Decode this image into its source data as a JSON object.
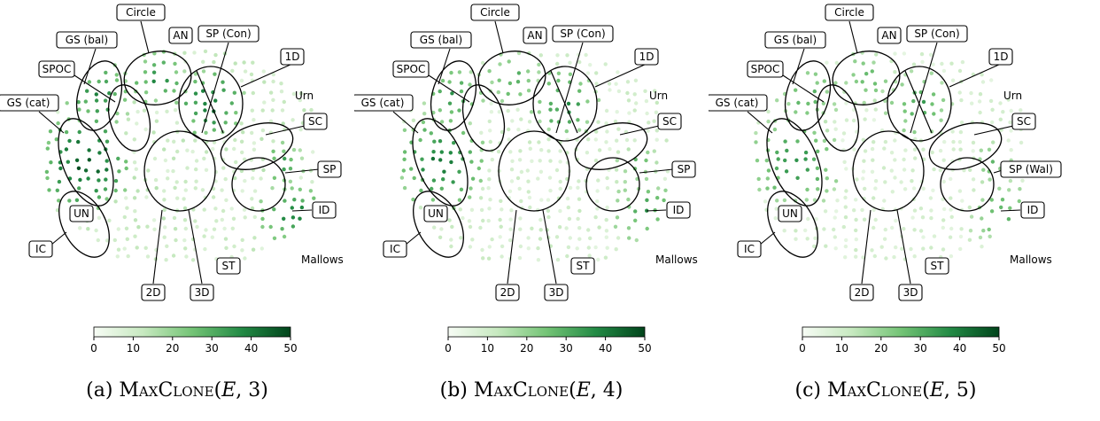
{
  "panels": [
    {
      "id": "a",
      "caption": {
        "prefix": "(a) ",
        "name": "MaxClone",
        "arg_var": "E",
        "arg_num": "3"
      },
      "cluster_labels": [
        "Circle",
        "AN",
        "SP (Con)",
        "GS (bal)",
        "1D",
        "SPOC",
        "GS (cat)",
        "SC",
        "SP",
        "ID",
        "UN",
        "IC",
        "ST",
        "2D",
        "3D"
      ],
      "plain_labels": [
        "Urn",
        "Mallows"
      ],
      "colorbar": {
        "ticks": [
          "0",
          "10",
          "20",
          "30",
          "40",
          "50"
        ],
        "min": 0,
        "max": 50,
        "colors": [
          "#f7fcf5",
          "#c7e9c0",
          "#74c476",
          "#238b45",
          "#00441b"
        ]
      },
      "level": 3
    },
    {
      "id": "b",
      "caption": {
        "prefix": "(b) ",
        "name": "MaxClone",
        "arg_var": "E",
        "arg_num": "4"
      },
      "cluster_labels": [
        "Circle",
        "AN",
        "SP (Con)",
        "GS (bal)",
        "1D",
        "SPOC",
        "GS (cat)",
        "SC",
        "SP",
        "ID",
        "UN",
        "IC",
        "ST",
        "2D",
        "3D"
      ],
      "plain_labels": [
        "Urn",
        "Mallows"
      ],
      "colorbar": {
        "ticks": [
          "0",
          "10",
          "20",
          "30",
          "40",
          "50"
        ],
        "min": 0,
        "max": 50,
        "colors": [
          "#f7fcf5",
          "#c7e9c0",
          "#74c476",
          "#238b45",
          "#00441b"
        ]
      },
      "level": 4
    },
    {
      "id": "c",
      "caption": {
        "prefix": "(c) ",
        "name": "MaxClone",
        "arg_var": "E",
        "arg_num": "5"
      },
      "cluster_labels": [
        "Circle",
        "AN",
        "SP (Con)",
        "GS (bal)",
        "1D",
        "SPOC",
        "GS (cat)",
        "SC",
        "SP (Wal)",
        "ID",
        "UN",
        "IC",
        "ST",
        "2D",
        "3D"
      ],
      "plain_labels": [
        "Urn",
        "Mallows"
      ],
      "colorbar": {
        "ticks": [
          "0",
          "10",
          "20",
          "30",
          "40",
          "50"
        ],
        "min": 0,
        "max": 50,
        "colors": [
          "#f7fcf5",
          "#c7e9c0",
          "#74c476",
          "#238b45",
          "#00441b"
        ]
      },
      "level": 5
    }
  ]
}
